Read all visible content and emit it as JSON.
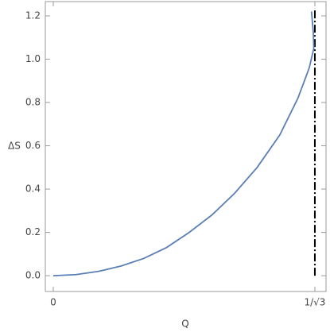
{
  "chart_data": {
    "type": "line",
    "x_label": "Q",
    "y_label": "ΔS",
    "x": [
      0,
      0.05,
      0.1,
      0.15,
      0.2,
      0.25,
      0.3,
      0.35,
      0.4,
      0.45,
      0.5,
      0.54,
      0.565,
      0.575,
      0.574,
      0.57
    ],
    "series": [
      {
        "color": "#5b7fb5",
        "values": [
          0,
          0.005,
          0.02,
          0.045,
          0.08,
          0.13,
          0.2,
          0.28,
          0.38,
          0.5,
          0.65,
          0.82,
          0.96,
          1.05,
          1.12,
          1.22
        ]
      }
    ],
    "vline_x": 0.57735,
    "xlim": [
      -0.0175,
      0.602
    ],
    "ylim": [
      -0.073,
      1.266
    ],
    "xticks": [
      0,
      {
        "value": 0.57735,
        "label": "1/√3"
      }
    ],
    "yticks": [
      {
        "value": 0,
        "label": "0.0"
      },
      0.2,
      0.4,
      0.6,
      0.8,
      {
        "value": 1,
        "label": "1.0"
      },
      1.2
    ]
  }
}
